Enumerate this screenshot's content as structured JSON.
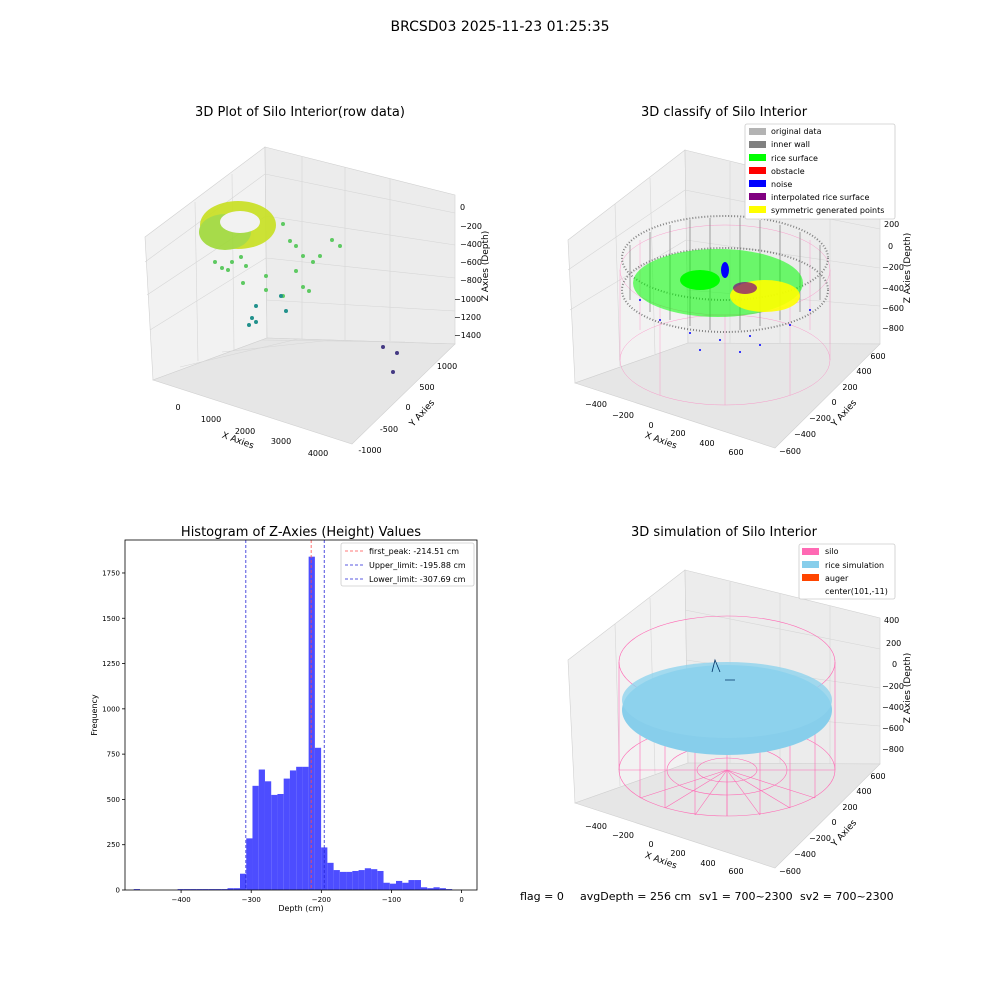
{
  "figure": {
    "suptitle": "BRCSD03 2025-11-23 01:25:35",
    "footer": {
      "flag": "flag = 0",
      "avg_depth": "avgDepth = 256 cm",
      "sv1": "sv1 = 700~2300",
      "sv2": "sv2 = 700~2300"
    }
  },
  "colors": {
    "hist_bar": "#4d4dff",
    "first_peak": "#ff4d4d",
    "limit_line": "#2424d6",
    "silo_pink": "#ff69b4",
    "rice_sim": "#87ceeb",
    "auger": "#ff4500",
    "rice_surface": "#00ff00",
    "inner_wall": "#808080",
    "noise": "#0000ff",
    "yellow_sym": "#ffff00",
    "pane": "#f2f2f2"
  },
  "chart_data": [
    {
      "type": "scatter",
      "subtype": "3d",
      "title": "3D Plot of Silo Interior(row data)",
      "xlabel": "X Axies",
      "ylabel": "Y Axies",
      "zlabel": "Z Axies (Depth)",
      "x_ticks": [
        "0",
        "1000",
        "2000",
        "3000",
        "4000"
      ],
      "y_ticks": [
        "-1000",
        "-500",
        "0",
        "500",
        "1000"
      ],
      "z_ticks": [
        "0",
        "−200",
        "−400",
        "−600",
        "−800",
        "−1000",
        "−1200",
        "−1400"
      ],
      "xlim": [
        -500,
        4500
      ],
      "ylim": [
        -1100,
        1200
      ],
      "zlim": [
        -1450,
        50
      ],
      "color_map": "viridis",
      "grid": true
    },
    {
      "type": "scatter",
      "subtype": "3d",
      "title": "3D classify of Silo Interior",
      "xlabel": "X Axies",
      "ylabel": "Y Axies",
      "zlabel": "Z Axies (Depth)",
      "x_ticks": [
        "−400",
        "−200",
        "0",
        "200",
        "400",
        "600"
      ],
      "y_ticks": [
        "−600",
        "−400",
        "−200",
        "0",
        "200",
        "400",
        "600"
      ],
      "z_ticks": [
        "200",
        "0",
        "−200",
        "−400",
        "−600",
        "−800"
      ],
      "legend": [
        {
          "label": "original data",
          "color": "#b3b3b3"
        },
        {
          "label": "inner wall",
          "color": "#808080"
        },
        {
          "label": "rice surface",
          "color": "#00ff00"
        },
        {
          "label": "obstacle",
          "color": "#ff0000"
        },
        {
          "label": "noise",
          "color": "#0000ff"
        },
        {
          "label": "interpolated rice surface",
          "color": "#800080"
        },
        {
          "label": "symmetric generated points",
          "color": "#ffff00"
        }
      ],
      "legend_position": "top-right",
      "grid": true
    },
    {
      "type": "bar",
      "subtype": "histogram",
      "title": "Histogram of Z-Axies (Height) Values",
      "xlabel": "Depth (cm)",
      "ylabel": "Frequency",
      "xlim": [
        -480,
        22
      ],
      "ylim": [
        0,
        1932
      ],
      "x_ticks": [
        "−400",
        "−300",
        "−200",
        "−100",
        "0"
      ],
      "x_tick_values": [
        -400,
        -300,
        -200,
        -100,
        0
      ],
      "y_ticks": [
        "0",
        "250",
        "500",
        "750",
        "1000",
        "1250",
        "1500",
        "1750"
      ],
      "y_tick_values": [
        0,
        250,
        500,
        750,
        1000,
        1250,
        1500,
        1750
      ],
      "bin_width": 8.9,
      "bins": [
        {
          "start": -467.5,
          "end": -458.6,
          "count": 5
        },
        {
          "start": -405.0,
          "end": -396.1,
          "count": 5
        },
        {
          "start": -396.1,
          "end": -387.2,
          "count": 5
        },
        {
          "start": -387.2,
          "end": -378.3,
          "count": 5
        },
        {
          "start": -378.3,
          "end": -369.4,
          "count": 5
        },
        {
          "start": -369.4,
          "end": -360.5,
          "count": 5
        },
        {
          "start": -360.5,
          "end": -351.6,
          "count": 5
        },
        {
          "start": -351.6,
          "end": -342.7,
          "count": 5
        },
        {
          "start": -342.7,
          "end": -333.8,
          "count": 5
        },
        {
          "start": -333.8,
          "end": -324.9,
          "count": 10
        },
        {
          "start": -324.9,
          "end": -316.0,
          "count": 10
        },
        {
          "start": -316.0,
          "end": -307.1,
          "count": 90
        },
        {
          "start": -307.1,
          "end": -298.2,
          "count": 285
        },
        {
          "start": -298.2,
          "end": -289.3,
          "count": 575
        },
        {
          "start": -289.3,
          "end": -280.4,
          "count": 665
        },
        {
          "start": -280.4,
          "end": -271.5,
          "count": 600
        },
        {
          "start": -271.5,
          "end": -262.6,
          "count": 525
        },
        {
          "start": -262.6,
          "end": -253.7,
          "count": 530
        },
        {
          "start": -253.7,
          "end": -244.8,
          "count": 615
        },
        {
          "start": -244.8,
          "end": -235.9,
          "count": 660
        },
        {
          "start": -235.9,
          "end": -227.0,
          "count": 680
        },
        {
          "start": -227.0,
          "end": -218.1,
          "count": 680
        },
        {
          "start": -218.1,
          "end": -209.2,
          "count": 1840
        },
        {
          "start": -209.2,
          "end": -200.3,
          "count": 785
        },
        {
          "start": -200.3,
          "end": -191.4,
          "count": 235
        },
        {
          "start": -191.4,
          "end": -182.5,
          "count": 150
        },
        {
          "start": -182.5,
          "end": -173.6,
          "count": 110
        },
        {
          "start": -173.6,
          "end": -164.7,
          "count": 100
        },
        {
          "start": -164.7,
          "end": -155.8,
          "count": 100
        },
        {
          "start": -155.8,
          "end": -146.9,
          "count": 105
        },
        {
          "start": -146.9,
          "end": -138.0,
          "count": 110
        },
        {
          "start": -138.0,
          "end": -129.1,
          "count": 120
        },
        {
          "start": -129.1,
          "end": -120.2,
          "count": 115
        },
        {
          "start": -120.2,
          "end": -111.3,
          "count": 105
        },
        {
          "start": -111.3,
          "end": -102.4,
          "count": 40
        },
        {
          "start": -102.4,
          "end": -93.5,
          "count": 35
        },
        {
          "start": -93.5,
          "end": -84.6,
          "count": 50
        },
        {
          "start": -84.6,
          "end": -75.7,
          "count": 40
        },
        {
          "start": -75.7,
          "end": -66.8,
          "count": 55
        },
        {
          "start": -66.8,
          "end": -57.9,
          "count": 55
        },
        {
          "start": -57.9,
          "end": -49.0,
          "count": 15
        },
        {
          "start": -49.0,
          "end": -40.1,
          "count": 10
        },
        {
          "start": -40.1,
          "end": -31.2,
          "count": 15
        },
        {
          "start": -31.2,
          "end": -22.3,
          "count": 10
        },
        {
          "start": -22.3,
          "end": -13.4,
          "count": 5
        }
      ],
      "vlines": [
        {
          "label": "first_peak: -214.51 cm",
          "x": -214.51,
          "color": "#ff4d4d"
        },
        {
          "label": "Upper_limit: -195.88 cm",
          "x": -195.88,
          "color": "#2424d6"
        },
        {
          "label": "Lower_limit: -307.69 cm",
          "x": -307.69,
          "color": "#2424d6"
        }
      ],
      "legend_position": "top-right",
      "grid": false
    },
    {
      "type": "scatter",
      "subtype": "3d",
      "title": "3D simulation of Silo Interior",
      "xlabel": "X Axies",
      "ylabel": "Y Axies",
      "zlabel": "Z Axies (Depth)",
      "x_ticks": [
        "−400",
        "−200",
        "0",
        "200",
        "400",
        "600"
      ],
      "y_ticks": [
        "−600",
        "−400",
        "−200",
        "0",
        "200",
        "400",
        "600"
      ],
      "z_ticks": [
        "400",
        "200",
        "0",
        "−200",
        "−400",
        "−600",
        "−800"
      ],
      "legend": [
        {
          "label": "silo",
          "color": "#ff69b4"
        },
        {
          "label": "rice simulation",
          "color": "#87ceeb"
        },
        {
          "label": "auger",
          "color": "#ff4500"
        },
        {
          "label": "center(101,-11)",
          "color": ""
        }
      ],
      "legend_position": "top-right",
      "grid": true
    }
  ]
}
